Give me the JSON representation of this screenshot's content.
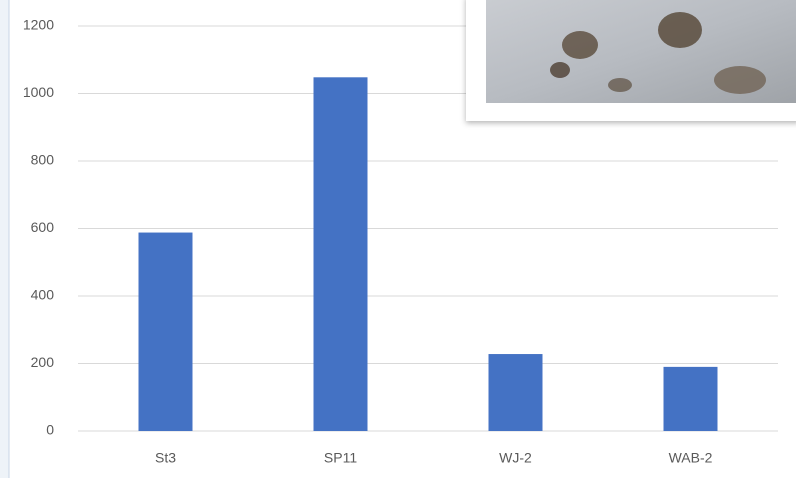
{
  "chart_data": {
    "type": "bar",
    "categories": [
      "St3",
      "SP11",
      "WJ-2",
      "WAB-2"
    ],
    "values": [
      588,
      1048,
      228,
      190
    ],
    "color": "#4472c4",
    "ylim": [
      0,
      1200
    ],
    "yticks": [
      0,
      200,
      400,
      600,
      800,
      1000,
      1200
    ],
    "grid": true
  }
}
